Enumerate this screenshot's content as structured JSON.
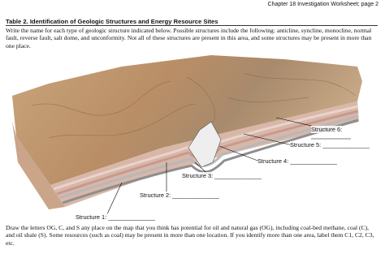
{
  "header": {
    "page_label": "Chapter 18 Investigation Worksheet; page 2"
  },
  "table": {
    "title": "Table 2. Identification of Geologic Structures and Energy Resource Sites",
    "instructions": "Write the name for each type of geologic structure indicated below.  Possible structures include the following: anticline, syncline, monocline, normal fault, reverse fault, salt dome, and unconformity.  Not all of these structures are present in this area, and some structures may be present in more than one place."
  },
  "figure": {
    "labels": [
      "Structure 1: ______________",
      "Structure 2: ______________",
      "Structure 3: ______________",
      "Structure 4: ______________",
      "Structure 5: ______________",
      "Structure 6:"
    ]
  },
  "footer": {
    "instructions": "Draw the letters OG, C, and S any place on the map that you think has potential for oil and natural gas (OG), including coal-bed methane, coal (C), and oil shale (S). Some resources (such as coal) may be present in more than one location. If you identify more than one area, label them C1, C2, C3, etc."
  }
}
